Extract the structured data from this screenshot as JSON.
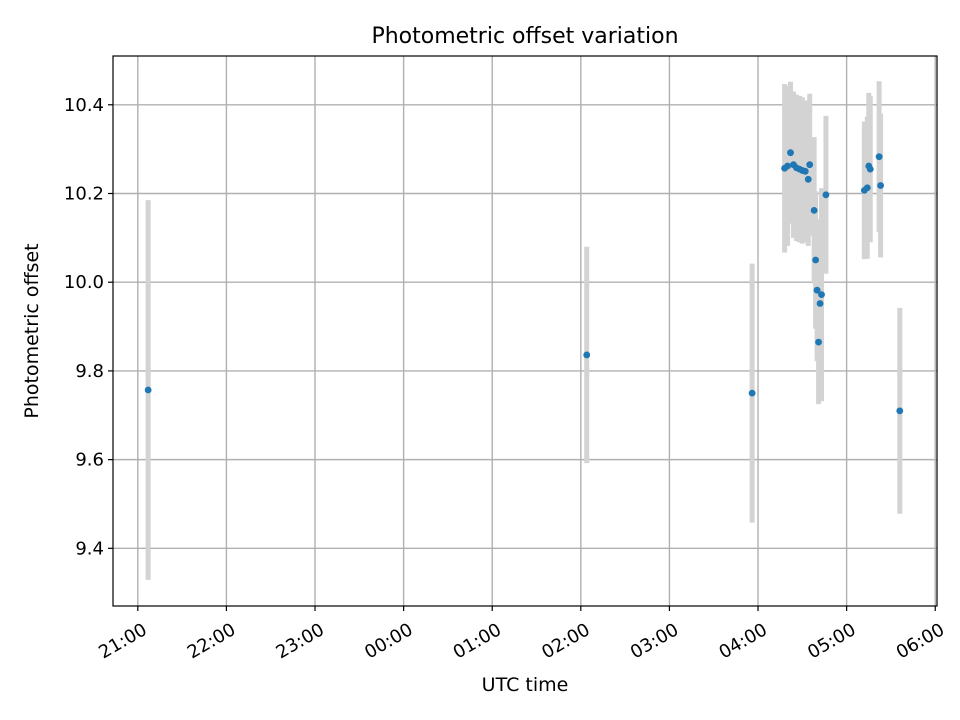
{
  "chart_data": {
    "type": "scatter",
    "title": "Photometric offset variation",
    "xlabel": "UTC time",
    "ylabel": "Photometric offset",
    "x_tick_labels": [
      "21:00",
      "22:00",
      "23:00",
      "00:00",
      "01:00",
      "02:00",
      "03:00",
      "04:00",
      "05:00",
      "06:00"
    ],
    "y_ticks": [
      9.4,
      9.6,
      9.8,
      10.0,
      10.2,
      10.4
    ],
    "y_tick_labels": [
      "9.4",
      "9.6",
      "9.8",
      "10.0",
      "10.2",
      "10.4"
    ],
    "xlim_hours": [
      20.72,
      30.02
    ],
    "ylim": [
      9.27,
      10.51
    ],
    "grid": true,
    "point_color": "#1f77b4",
    "errorbar_color": "#d3d3d3",
    "points": [
      {
        "t": "21:07",
        "y": 9.757,
        "err": 0.428
      },
      {
        "t": "02:04",
        "y": 9.836,
        "err": 0.244
      },
      {
        "t": "03:56",
        "y": 9.75,
        "err": 0.292
      },
      {
        "t": "04:18",
        "y": 10.257,
        "err": 0.19
      },
      {
        "t": "04:20",
        "y": 10.262,
        "err": 0.18
      },
      {
        "t": "04:22",
        "y": 10.292,
        "err": 0.16
      },
      {
        "t": "04:24",
        "y": 10.265,
        "err": 0.165
      },
      {
        "t": "04:26",
        "y": 10.258,
        "err": 0.165
      },
      {
        "t": "04:28",
        "y": 10.255,
        "err": 0.165
      },
      {
        "t": "04:30",
        "y": 10.252,
        "err": 0.165
      },
      {
        "t": "04:32",
        "y": 10.25,
        "err": 0.16
      },
      {
        "t": "04:34",
        "y": 10.232,
        "err": 0.15
      },
      {
        "t": "04:35",
        "y": 10.265,
        "err": 0.16
      },
      {
        "t": "04:38",
        "y": 10.162,
        "err": 0.165
      },
      {
        "t": "04:39",
        "y": 10.05,
        "err": 0.155
      },
      {
        "t": "04:40",
        "y": 9.982,
        "err": 0.16
      },
      {
        "t": "04:41",
        "y": 9.865,
        "err": 0.14
      },
      {
        "t": "04:42",
        "y": 9.952,
        "err": 0.12
      },
      {
        "t": "04:43",
        "y": 9.972,
        "err": 0.24
      },
      {
        "t": "04:46",
        "y": 10.197,
        "err": 0.178
      },
      {
        "t": "05:12",
        "y": 10.207,
        "err": 0.155
      },
      {
        "t": "05:14",
        "y": 10.213,
        "err": 0.16
      },
      {
        "t": "05:15",
        "y": 10.262,
        "err": 0.165
      },
      {
        "t": "05:16",
        "y": 10.255,
        "err": 0.165
      },
      {
        "t": "05:22",
        "y": 10.283,
        "err": 0.17
      },
      {
        "t": "05:23",
        "y": 10.218,
        "err": 0.162
      },
      {
        "t": "05:36",
        "y": 9.71,
        "err": 0.232
      }
    ]
  }
}
